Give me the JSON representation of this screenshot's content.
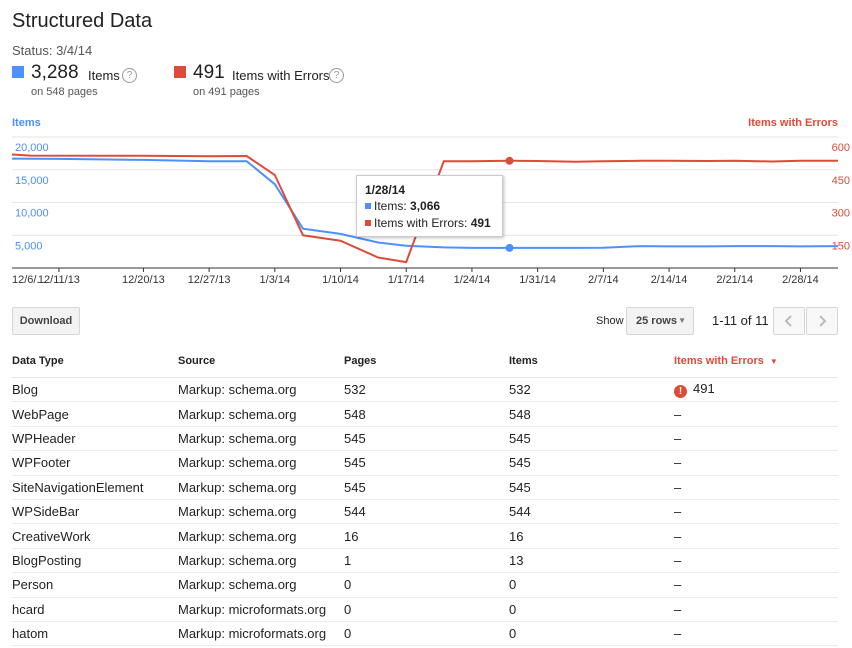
{
  "page": {
    "title": "Structured Data",
    "status": "Status: 3/4/14"
  },
  "summary": {
    "items": {
      "value": "3,288",
      "label": "Items",
      "sub": "on 548 pages",
      "color": "#4d90fe"
    },
    "errors": {
      "value": "491",
      "label": "Items with Errors",
      "sub": "on 491 pages",
      "color": "#dd4b39"
    }
  },
  "chart_data": {
    "type": "line",
    "left_axis_title": "Items",
    "right_axis_title": "Items with Errors",
    "left_ticks": [
      "20,000",
      "15,000",
      "10,000",
      "5,000"
    ],
    "left_tick_values": [
      20000,
      15000,
      10000,
      5000
    ],
    "left_range": [
      0,
      20000
    ],
    "right_ticks": [
      "600",
      "450",
      "300",
      "150"
    ],
    "right_tick_values": [
      600,
      450,
      300,
      150
    ],
    "right_range": [
      0,
      600
    ],
    "x_labels": [
      "12/6/...",
      "12/11/13",
      "12/20/13",
      "12/27/13",
      "1/3/14",
      "1/10/14",
      "1/17/14",
      "1/24/14",
      "1/31/14",
      "2/7/14",
      "2/14/14",
      "2/21/14",
      "2/28/14"
    ],
    "x_label_days": [
      0,
      5,
      14,
      21,
      28,
      35,
      42,
      49,
      56,
      63,
      70,
      77,
      84
    ],
    "day_span": 88,
    "series": [
      {
        "name": "Items",
        "color": "#4d90fe",
        "axis": "left",
        "days": [
          0,
          5,
          14,
          21,
          25,
          28,
          31,
          35,
          39,
          42,
          46,
          49,
          53,
          56,
          60,
          63,
          67,
          70,
          74,
          77,
          81,
          84,
          88
        ],
        "values": [
          16700,
          16650,
          16500,
          16300,
          16300,
          12800,
          6000,
          5200,
          3900,
          3400,
          3150,
          3066,
          3066,
          3066,
          3066,
          3100,
          3350,
          3300,
          3300,
          3350,
          3350,
          3300,
          3350
        ]
      },
      {
        "name": "Items with Errors",
        "color": "#dd4b39",
        "axis": "right",
        "days": [
          0,
          2,
          14,
          21,
          25,
          28,
          31,
          35,
          39,
          42,
          46,
          49,
          53,
          56,
          60,
          63,
          67,
          70,
          74,
          77,
          81,
          84,
          88
        ],
        "values": [
          520,
          515,
          514,
          512,
          513,
          426,
          150,
          125,
          48,
          27,
          489,
          489,
          491,
          490,
          487,
          489,
          491,
          491,
          490,
          491,
          488,
          491,
          491
        ]
      }
    ],
    "highlight_day": 53,
    "tooltip": {
      "date": "1/28/14",
      "items_label": "Items:",
      "items_value": "3,066",
      "errors_label": "Items with Errors:",
      "errors_value": "491"
    }
  },
  "toolbar": {
    "download_label": "Download",
    "show_label": "Show",
    "rows_select": "25 rows",
    "pagination": "1-11 of 11"
  },
  "table": {
    "headers": [
      "Data Type",
      "Source",
      "Pages",
      "Items",
      "Items with Errors"
    ],
    "rows": [
      [
        "Blog",
        "Markup: schema.org",
        "532",
        "532",
        "491"
      ],
      [
        "WebPage",
        "Markup: schema.org",
        "548",
        "548",
        "–"
      ],
      [
        "WPHeader",
        "Markup: schema.org",
        "545",
        "545",
        "–"
      ],
      [
        "WPFooter",
        "Markup: schema.org",
        "545",
        "545",
        "–"
      ],
      [
        "SiteNavigationElement",
        "Markup: schema.org",
        "545",
        "545",
        "–"
      ],
      [
        "WPSideBar",
        "Markup: schema.org",
        "544",
        "544",
        "–"
      ],
      [
        "CreativeWork",
        "Markup: schema.org",
        "16",
        "16",
        "–"
      ],
      [
        "BlogPosting",
        "Markup: schema.org",
        "1",
        "13",
        "–"
      ],
      [
        "Person",
        "Markup: schema.org",
        "0",
        "0",
        "–"
      ],
      [
        "hcard",
        "Markup: microformats.org",
        "0",
        "0",
        "–"
      ],
      [
        "hatom",
        "Markup: microformats.org",
        "0",
        "0",
        "–"
      ]
    ],
    "error_row_index": 0
  }
}
